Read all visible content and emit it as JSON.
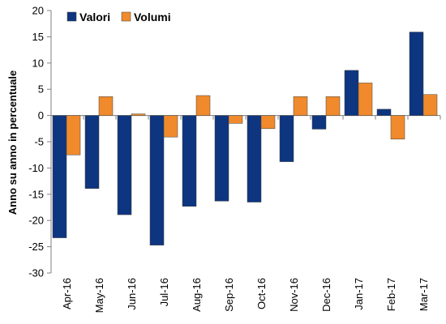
{
  "chart_data": {
    "type": "bar",
    "title": "",
    "xlabel": "",
    "ylabel": "Anno su anno in percentuale",
    "ylim": [
      -30,
      20
    ],
    "yticks": [
      -30,
      -25,
      -20,
      -15,
      -10,
      -5,
      0,
      5,
      10,
      15,
      20
    ],
    "grid": false,
    "legend_position": "top-left",
    "categories": [
      "Apr-16",
      "May-16",
      "Jun-16",
      "Jul-16",
      "Aug-16",
      "Sep-16",
      "Oct-16",
      "Nov-16",
      "Dec-16",
      "Jan-17",
      "Feb-17",
      "Mar-17"
    ],
    "series": [
      {
        "name": "Valori",
        "color": "#0d3580",
        "values": [
          -23.3,
          -13.9,
          -18.9,
          -24.7,
          -17.3,
          -16.3,
          -16.5,
          -8.8,
          -2.6,
          8.6,
          1.2,
          15.9
        ]
      },
      {
        "name": "Volumi",
        "color": "#f08a2c",
        "values": [
          -7.5,
          3.6,
          0.3,
          -4.1,
          3.8,
          -1.5,
          -2.5,
          3.6,
          3.6,
          6.2,
          -4.5,
          4.0
        ]
      }
    ]
  }
}
